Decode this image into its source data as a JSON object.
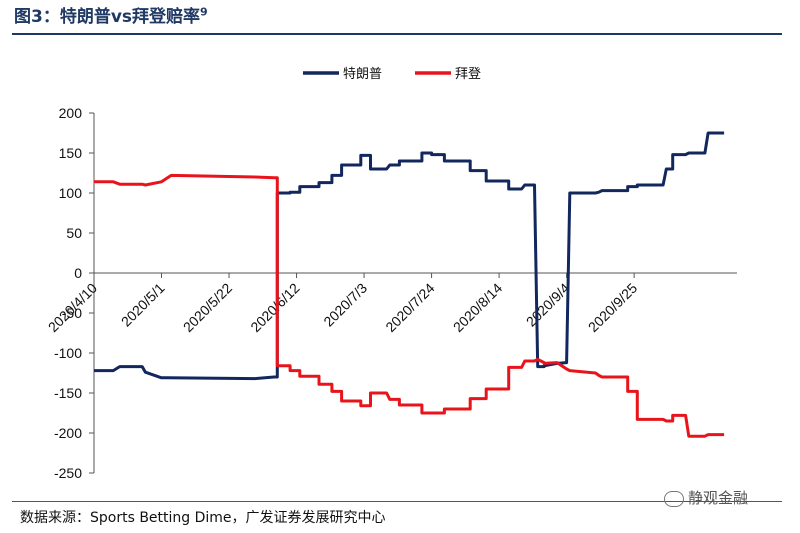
{
  "header": {
    "title": "图3：特朗普vs拜登赔率",
    "title_note": "9"
  },
  "footer": {
    "source": "数据来源：Sports Betting Dime，广发证券发展研究中心",
    "watermark": "静观金融"
  },
  "chart_data": {
    "type": "line",
    "title": "",
    "xlabel": "",
    "ylabel": "",
    "ylim": [
      -250,
      200
    ],
    "yticks": [
      -250,
      -200,
      -150,
      -100,
      -50,
      0,
      50,
      100,
      150,
      200
    ],
    "xlim": [
      "2020/4/10",
      "2020/10/27"
    ],
    "xticks": [
      "2020/4/10",
      "2020/5/1",
      "2020/5/22",
      "2020/6/12",
      "2020/7/3",
      "2020/7/24",
      "2020/8/14",
      "2020/9/4",
      "2020/9/25"
    ],
    "legend_position": "top-center",
    "grid": false,
    "colors": {
      "trump": "#12275e",
      "biden": "#e8141c"
    },
    "series": [
      {
        "name": "特朗普",
        "x": [
          "2020/4/10",
          "2020/4/16",
          "2020/4/18",
          "2020/4/25",
          "2020/4/26",
          "2020/5/1",
          "2020/5/3",
          "2020/5/30",
          "2020/6/5",
          "2020/6/6",
          "2020/6/6",
          "2020/6/10",
          "2020/6/10",
          "2020/6/13",
          "2020/6/13",
          "2020/6/19",
          "2020/6/19",
          "2020/6/23",
          "2020/6/23",
          "2020/6/26",
          "2020/6/26",
          "2020/7/2",
          "2020/7/2",
          "2020/7/5",
          "2020/7/5",
          "2020/7/10",
          "2020/7/11",
          "2020/7/14",
          "2020/7/14",
          "2020/7/21",
          "2020/7/21",
          "2020/7/24",
          "2020/7/24",
          "2020/7/28",
          "2020/7/28",
          "2020/8/5",
          "2020/8/5",
          "2020/8/10",
          "2020/8/10",
          "2020/8/17",
          "2020/8/17",
          "2020/8/21",
          "2020/8/22",
          "2020/8/25",
          "2020/8/26",
          "2020/8/28",
          "2020/8/28",
          "2020/9/1",
          "2020/9/4",
          "2020/9/5",
          "2020/9/13",
          "2020/9/14",
          "2020/9/15",
          "2020/9/23",
          "2020/9/23",
          "2020/9/26",
          "2020/9/26",
          "2020/10/4",
          "2020/10/5",
          "2020/10/7",
          "2020/10/7",
          "2020/10/11",
          "2020/10/12",
          "2020/10/17",
          "2020/10/18",
          "2020/10/21",
          "2020/10/23"
        ],
        "values": [
          -122,
          -122,
          -117,
          -117,
          -124,
          -131,
          -131,
          -132,
          -130,
          -130,
          100,
          100,
          101,
          101,
          108,
          108,
          113,
          113,
          122,
          122,
          135,
          135,
          147,
          147,
          130,
          130,
          135,
          135,
          140,
          140,
          150,
          150,
          148,
          148,
          140,
          140,
          128,
          128,
          115,
          115,
          105,
          105,
          110,
          110,
          -117,
          -117,
          -116,
          -113,
          -112,
          100,
          100,
          101,
          103,
          103,
          108,
          108,
          110,
          110,
          130,
          130,
          148,
          148,
          150,
          150,
          175,
          175,
          175
        ]
      },
      {
        "name": "拜登",
        "x": [
          "2020/4/10",
          "2020/4/16",
          "2020/4/18",
          "2020/4/25",
          "2020/4/26",
          "2020/5/1",
          "2020/5/4",
          "2020/5/30",
          "2020/6/5",
          "2020/6/6",
          "2020/6/6",
          "2020/6/10",
          "2020/6/10",
          "2020/6/13",
          "2020/6/13",
          "2020/6/19",
          "2020/6/19",
          "2020/6/23",
          "2020/6/23",
          "2020/6/26",
          "2020/6/26",
          "2020/7/2",
          "2020/7/2",
          "2020/7/5",
          "2020/7/5",
          "2020/7/10",
          "2020/7/11",
          "2020/7/14",
          "2020/7/14",
          "2020/7/21",
          "2020/7/21",
          "2020/7/24",
          "2020/7/24",
          "2020/7/28",
          "2020/7/28",
          "2020/8/5",
          "2020/8/5",
          "2020/8/10",
          "2020/8/10",
          "2020/8/17",
          "2020/8/17",
          "2020/8/21",
          "2020/8/22",
          "2020/8/25",
          "2020/8/26",
          "2020/8/28",
          "2020/8/28",
          "2020/9/1",
          "2020/9/4",
          "2020/9/5",
          "2020/9/13",
          "2020/9/14",
          "2020/9/15",
          "2020/9/23",
          "2020/9/23",
          "2020/9/26",
          "2020/9/26",
          "2020/10/4",
          "2020/10/5",
          "2020/10/7",
          "2020/10/7",
          "2020/10/11",
          "2020/10/12",
          "2020/10/17",
          "2020/10/18",
          "2020/10/21",
          "2020/10/23"
        ],
        "values": [
          114,
          114,
          111,
          111,
          110,
          114,
          122,
          120,
          119,
          119,
          -116,
          -116,
          -122,
          -122,
          -129,
          -129,
          -139,
          -139,
          -148,
          -148,
          -160,
          -160,
          -166,
          -166,
          -150,
          -150,
          -158,
          -158,
          -165,
          -165,
          -175,
          -175,
          -175,
          -175,
          -170,
          -170,
          -157,
          -157,
          -145,
          -145,
          -118,
          -118,
          -110,
          -110,
          -108,
          -112,
          -113,
          -112,
          -120,
          -122,
          -125,
          -128,
          -130,
          -130,
          -148,
          -148,
          -183,
          -183,
          -185,
          -185,
          -178,
          -178,
          -204,
          -204,
          -202,
          -202,
          -202
        ]
      }
    ]
  }
}
